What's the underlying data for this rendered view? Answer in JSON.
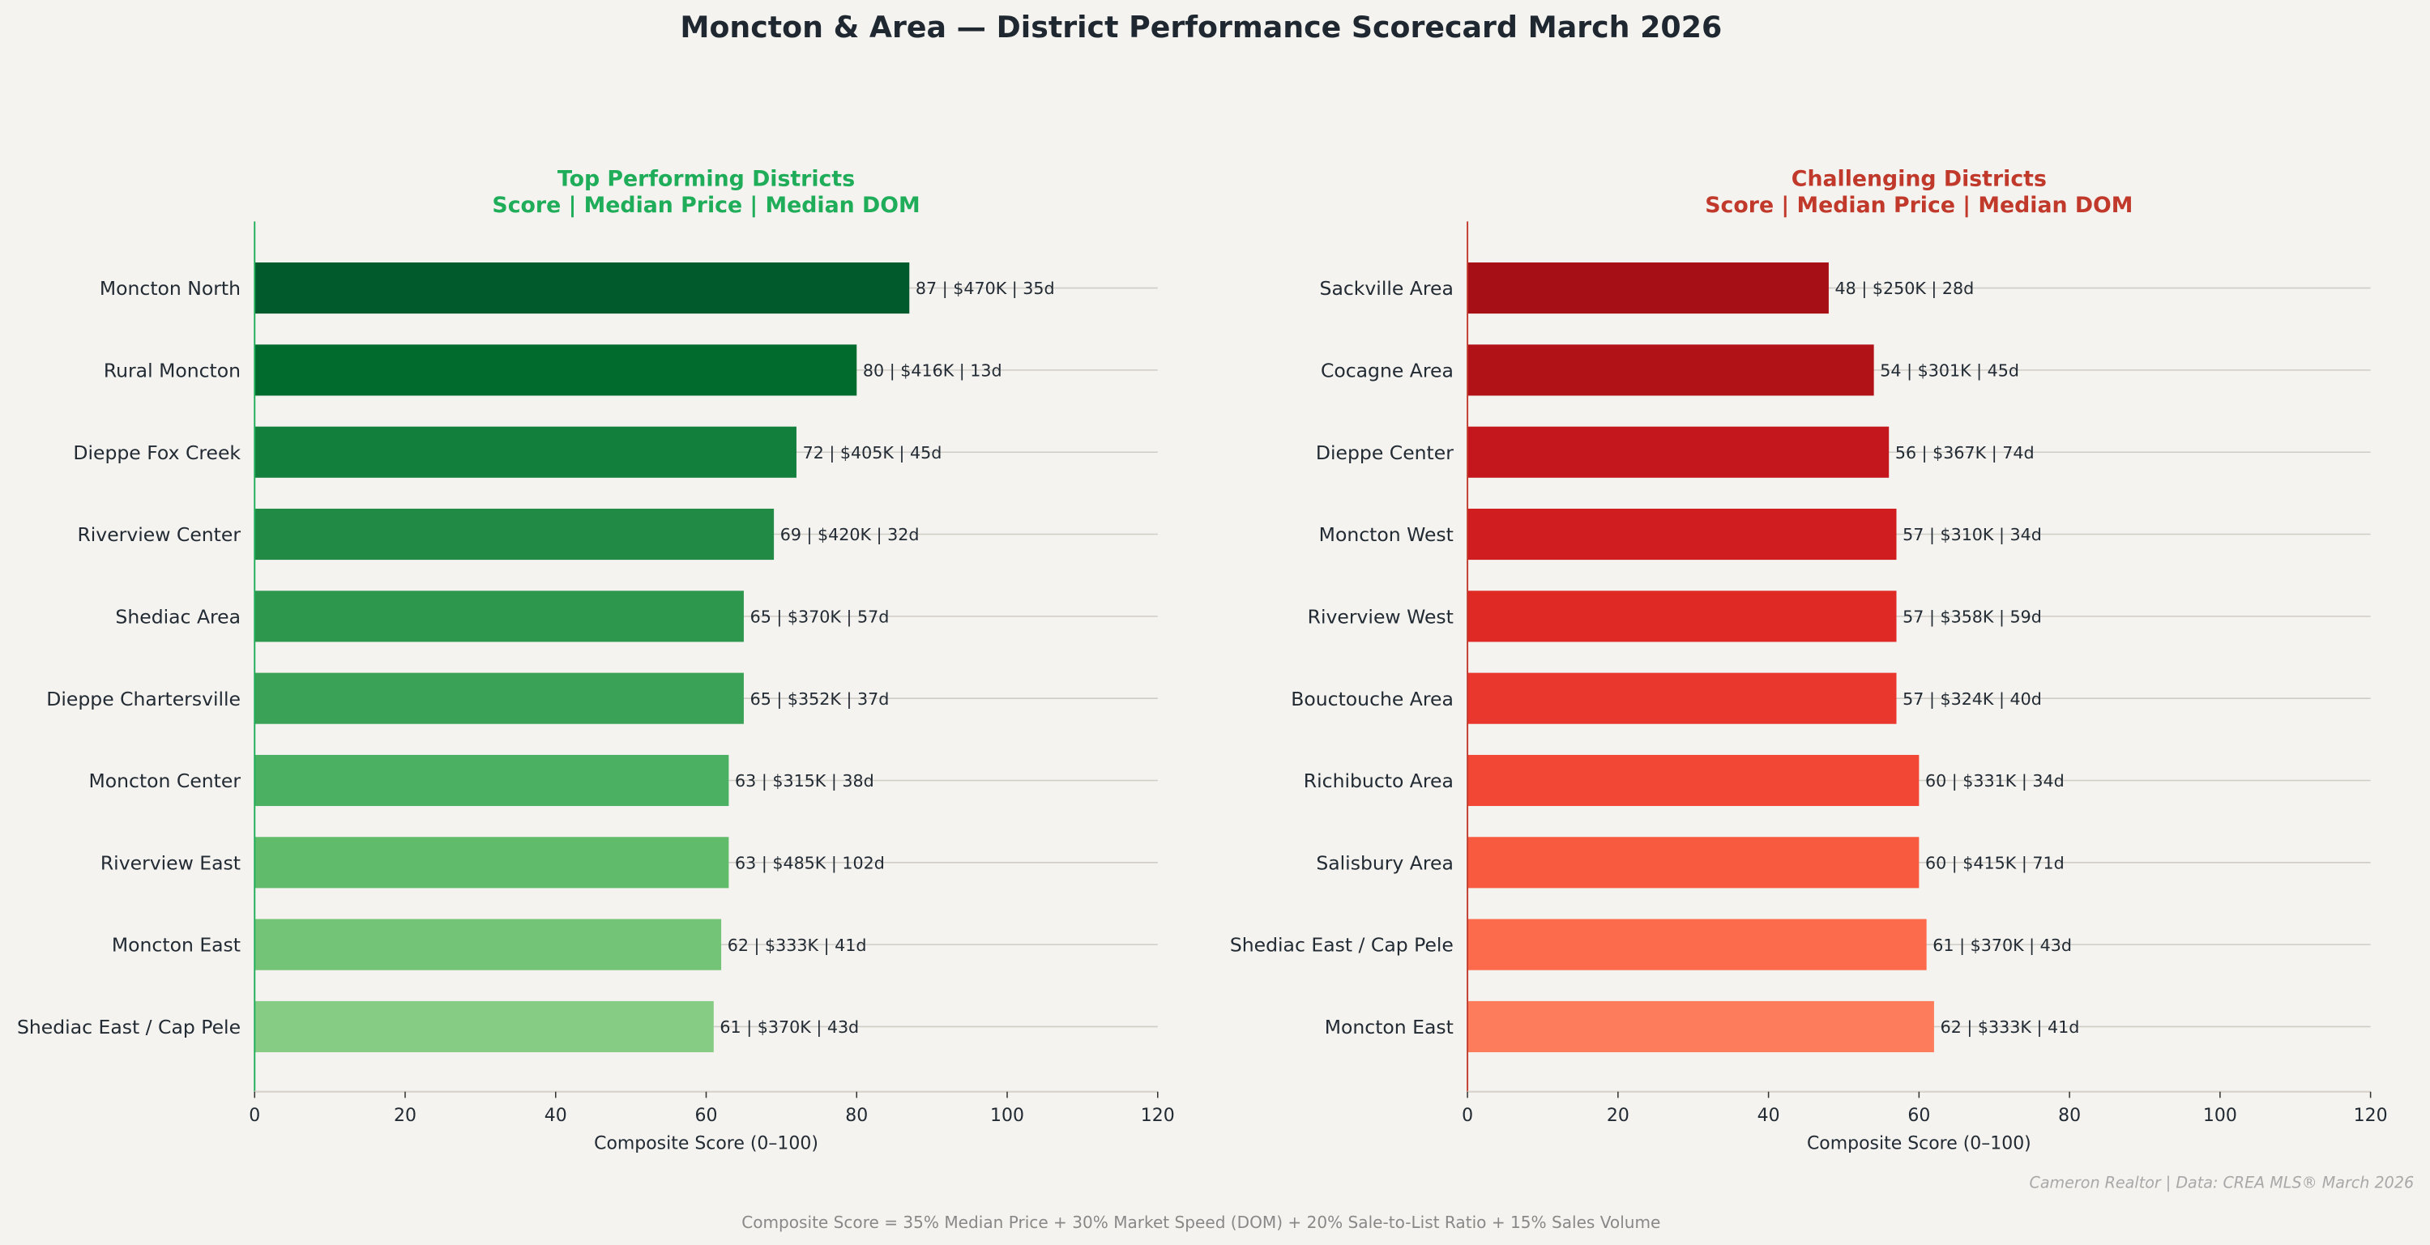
{
  "title": "Moncton & Area — District Performance Scorecard  March 2026",
  "credit": "Cameron Realtor  |  Data: CREA MLS® March 2026",
  "formula": "Composite Score = 35% Median Price  +  30% Market Speed (DOM)  +  20% Sale-to-List Ratio  +  15% Sales Volume",
  "chart_data": [
    {
      "type": "bar",
      "orientation": "horizontal",
      "title": "Top Performing Districts",
      "subtitle": "Score  |  Median Price  |  Median DOM",
      "title_color": "#1fad5a",
      "xlabel": "Composite Score  (0–100)",
      "xlim": [
        0,
        120
      ],
      "xticks": [
        "0",
        "20",
        "40",
        "60",
        "80",
        "100",
        "120"
      ],
      "grid": "horizontal lines at each bar",
      "colormap": "greens",
      "colors": [
        "#005a2b",
        "#006b2d",
        "#137f3c",
        "#218b45",
        "#2e974e",
        "#3aa257",
        "#4bb062",
        "#60bb6b",
        "#73c476",
        "#86cc85"
      ],
      "categories": [
        "Moncton North",
        "Rural Moncton",
        "Dieppe Fox Creek",
        "Riverview Center",
        "Shediac Area",
        "Dieppe Chartersville",
        "Moncton Center",
        "Riverview East",
        "Moncton East",
        "Shediac East / Cap Pele"
      ],
      "values": [
        87,
        80,
        72,
        69,
        65,
        65,
        63,
        63,
        62,
        61
      ],
      "labels": [
        "87  |  $470K  |  35d",
        "80  |  $416K  |  13d",
        "72  |  $405K  |  45d",
        "69  |  $420K  |  32d",
        "65  |  $370K  |  57d",
        "65  |  $352K  |  37d",
        "63  |  $315K  |  38d",
        "63  |  $485K  |  102d",
        "62  |  $333K  |  41d",
        "61  |  $370K  |  43d"
      ]
    },
    {
      "type": "bar",
      "orientation": "horizontal",
      "title": "Challenging Districts",
      "subtitle": "Score  |  Median Price  |  Median DOM",
      "title_color": "#c0392b",
      "xlabel": "Composite Score  (0–100)",
      "xlim": [
        0,
        120
      ],
      "xticks": [
        "0",
        "20",
        "40",
        "60",
        "80",
        "100",
        "120"
      ],
      "grid": "horizontal lines at each bar",
      "colormap": "reds",
      "colors": [
        "#a50f15",
        "#b11218",
        "#c3161d",
        "#d01d20",
        "#de2925",
        "#ea372d",
        "#f24734",
        "#f85a3f",
        "#fc6b4b",
        "#fc7c5c"
      ],
      "categories": [
        "Sackville Area",
        "Cocagne Area",
        "Dieppe Center",
        "Moncton West",
        "Riverview West",
        "Bouctouche Area",
        "Richibucto Area",
        "Salisbury Area",
        "Shediac East / Cap Pele",
        "Moncton East"
      ],
      "values": [
        48,
        54,
        56,
        57,
        57,
        57,
        60,
        60,
        61,
        62
      ],
      "labels": [
        "48  |  $250K  |  28d",
        "54  |  $301K  |  45d",
        "56  |  $367K  |  74d",
        "57  |  $310K  |  34d",
        "57  |  $358K  |  59d",
        "57  |  $324K  |  40d",
        "60  |  $331K  |  34d",
        "60  |  $415K  |  71d",
        "61  |  $370K  |  43d",
        "62  |  $333K  |  41d"
      ]
    }
  ]
}
